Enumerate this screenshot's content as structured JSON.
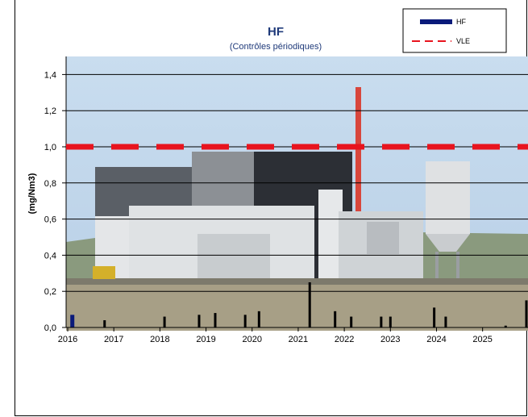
{
  "chart_data": {
    "type": "bar",
    "title": "HF",
    "subtitle": "(Contrôles périodiques)",
    "xlabel": "",
    "ylabel": "(mg/Nm3)",
    "ylim": [
      0,
      1.5
    ],
    "xlim": [
      2016.0,
      2025.95
    ],
    "yticks": [
      "0,0",
      "0,2",
      "0,4",
      "0,6",
      "0,8",
      "1,0",
      "1,2",
      "1,4"
    ],
    "yvalues": [
      0,
      0.2,
      0.4,
      0.6,
      0.8,
      1.0,
      1.2,
      1.4
    ],
    "xticks": [
      "2016",
      "2017",
      "2018",
      "2019",
      "2020",
      "2021",
      "2022",
      "2023",
      "2024",
      "2025"
    ],
    "grid": true,
    "legend_position": "top-right",
    "series": [
      {
        "name": "HF",
        "color": "#0a1a7a",
        "x": [
          2016.1,
          2016.8,
          2018.1,
          2018.85,
          2019.2,
          2019.85,
          2020.15,
          2021.25,
          2021.8,
          2022.15,
          2022.8,
          2023.0,
          2023.95,
          2024.2,
          2025.5,
          2025.95
        ],
        "values": [
          0.07,
          0.04,
          0.06,
          0.07,
          0.08,
          0.07,
          0.09,
          0.25,
          0.09,
          0.06,
          0.06,
          0.06,
          0.11,
          0.06,
          0.01,
          0.15
        ]
      },
      {
        "name": "VLE",
        "color": "#e8141e",
        "style": "dashed",
        "value": 1.0
      }
    ],
    "background": "photo-industrial-plant"
  }
}
